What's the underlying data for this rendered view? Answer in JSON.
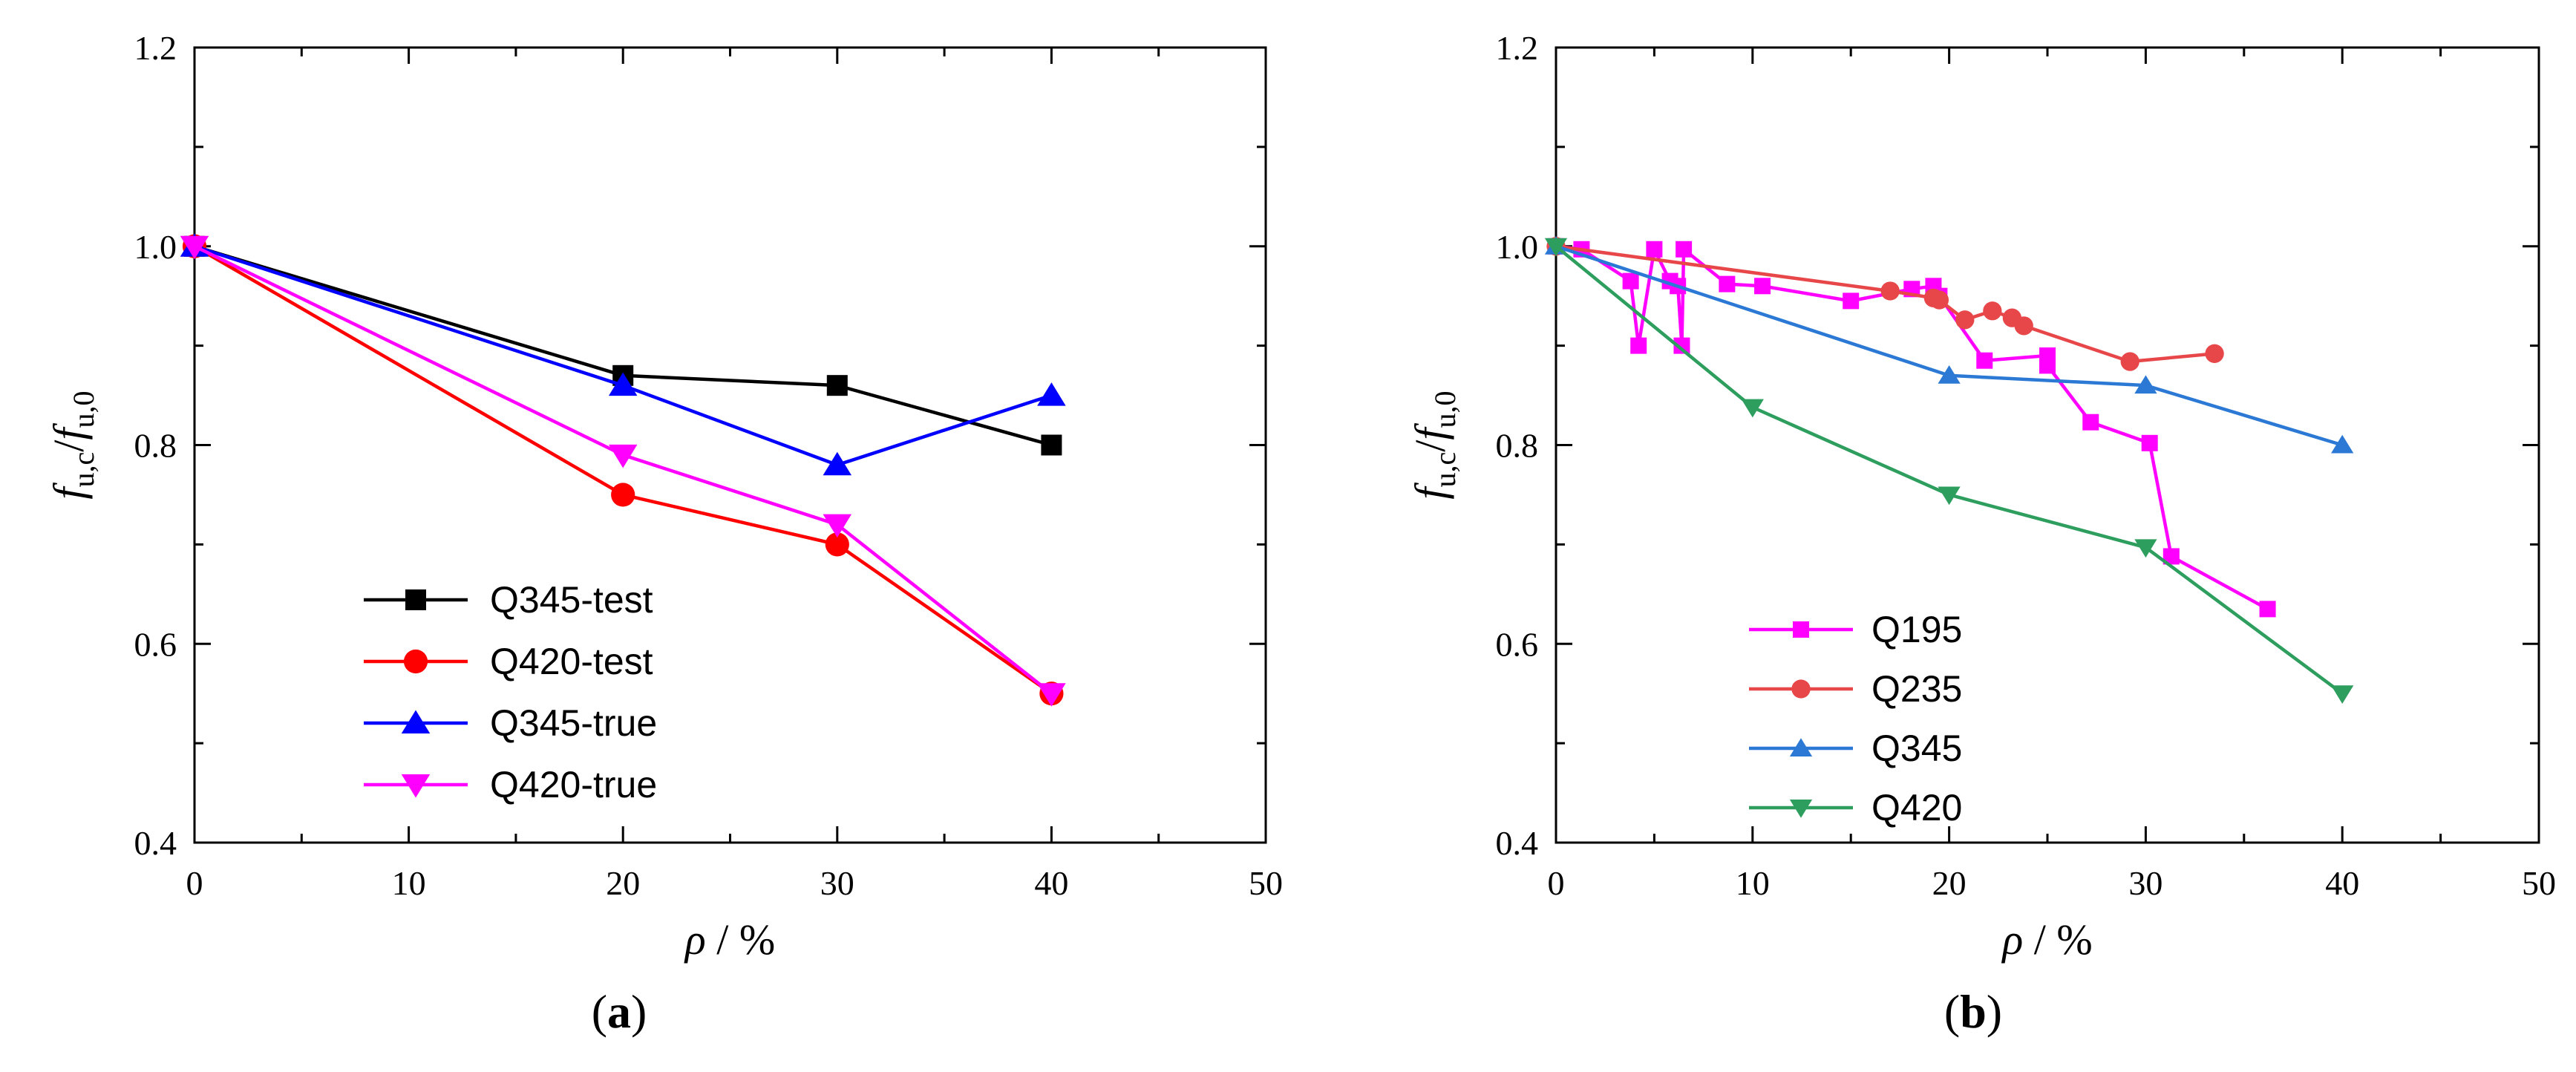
{
  "chart_data": [
    {
      "type": "line",
      "panel_label": "a",
      "xlabel": "ρ / %",
      "ylabel": {
        "main": "f",
        "sub1": "u,c",
        "sep": "/",
        "main2": "f",
        "sub2": "u,0"
      },
      "xlim": [
        0,
        50
      ],
      "ylim": [
        0.4,
        1.2
      ],
      "xticks": [
        "0",
        "10",
        "20",
        "30",
        "40",
        "50"
      ],
      "yticks": [
        "0.4",
        "0.6",
        "0.8",
        "1.0",
        "1.2"
      ],
      "grid": false,
      "legend": "bottom-left",
      "series": [
        {
          "name": "Q345-test",
          "color": "#000000",
          "marker": "square",
          "x": [
            0,
            20,
            30,
            40
          ],
          "y": [
            1.0,
            0.87,
            0.86,
            0.8
          ]
        },
        {
          "name": "Q420-test",
          "color": "#ff0000",
          "marker": "circle",
          "x": [
            0,
            20,
            30,
            40
          ],
          "y": [
            1.0,
            0.75,
            0.7,
            0.55
          ]
        },
        {
          "name": "Q345-true",
          "color": "#0000ff",
          "marker": "triangle-up",
          "x": [
            0,
            20,
            30,
            40
          ],
          "y": [
            1.0,
            0.86,
            0.78,
            0.85
          ]
        },
        {
          "name": "Q420-true",
          "color": "#ff00ff",
          "marker": "triangle-down",
          "x": [
            0,
            20,
            30,
            40
          ],
          "y": [
            1.0,
            0.79,
            0.72,
            0.55
          ]
        }
      ]
    },
    {
      "type": "line",
      "panel_label": "b",
      "xlabel": "ρ / %",
      "ylabel": {
        "main": "f",
        "sub1": "u,c",
        "sep": "/",
        "main2": "f",
        "sub2": "u,0"
      },
      "xlim": [
        0,
        50
      ],
      "ylim": [
        0.4,
        1.2
      ],
      "xticks": [
        "0",
        "10",
        "20",
        "30",
        "40",
        "50"
      ],
      "yticks": [
        "0.4",
        "0.6",
        "0.8",
        "1.0",
        "1.2"
      ],
      "grid": false,
      "legend": "bottom-left",
      "series": [
        {
          "name": "Q195",
          "color": "#ff00ff",
          "marker": "square",
          "x": [
            0,
            1.3,
            3.8,
            4.2,
            5.0,
            5.8,
            6.2,
            6.4,
            6.5,
            8.7,
            10.5,
            15.0,
            18.1,
            19.2,
            19.5,
            21.8,
            25.0,
            25.0,
            27.2,
            30.2,
            31.3,
            36.2
          ],
          "y": [
            1.0,
            0.997,
            0.965,
            0.9,
            0.997,
            0.965,
            0.96,
            0.9,
            0.997,
            0.962,
            0.96,
            0.945,
            0.957,
            0.96,
            0.95,
            0.885,
            0.89,
            0.88,
            0.823,
            0.802,
            0.688,
            0.635
          ]
        },
        {
          "name": "Q235",
          "color": "#e8474a",
          "marker": "circle",
          "x": [
            0,
            17.0,
            19.2,
            19.5,
            20.8,
            22.2,
            23.2,
            23.8,
            29.2,
            33.5
          ],
          "y": [
            1.0,
            0.955,
            0.948,
            0.946,
            0.926,
            0.935,
            0.928,
            0.92,
            0.884,
            0.892
          ]
        },
        {
          "name": "Q345",
          "color": "#2b79d4",
          "marker": "triangle-up",
          "x": [
            0,
            20,
            30,
            40
          ],
          "y": [
            1.0,
            0.87,
            0.86,
            0.8
          ]
        },
        {
          "name": "Q420",
          "color": "#2e9e5e",
          "marker": "triangle-down",
          "x": [
            0,
            10,
            20,
            30,
            40
          ],
          "y": [
            1.0,
            0.838,
            0.75,
            0.697,
            0.55
          ]
        }
      ]
    }
  ]
}
